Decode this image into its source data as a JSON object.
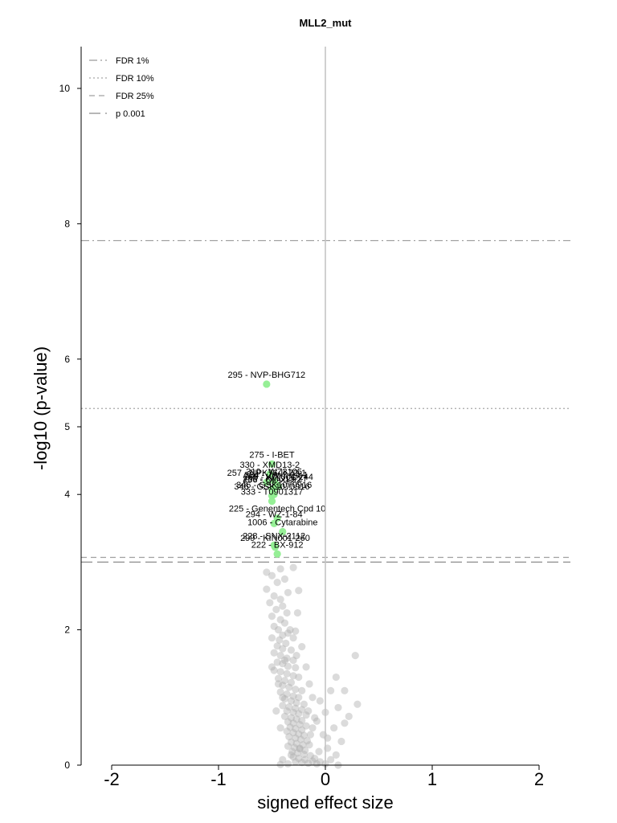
{
  "chart_data": {
    "type": "scatter",
    "title": "MLL2_mut",
    "xlabel": "signed effect size",
    "ylabel": "-log10 (p-value)",
    "xlim": [
      -2.3,
      2.3
    ],
    "ylim": [
      0,
      10.6
    ],
    "x_ticks": [
      "-2",
      "-1",
      "0",
      "1",
      "2"
    ],
    "y_ticks": [
      "0",
      "2",
      "4",
      "5",
      "6",
      "8",
      "10"
    ],
    "grid": false,
    "legend_placement": "top-left",
    "thresholds": [
      {
        "name": "FDR 1%",
        "y": 7.75,
        "style": "dashdot"
      },
      {
        "name": "FDR 10%",
        "y": 5.27,
        "style": "dotted"
      },
      {
        "name": "FDR 25%",
        "y": 3.07,
        "style": "dashed"
      },
      {
        "name": "p 0.001",
        "y": 3.0,
        "style": "longdash"
      }
    ],
    "highlight_color": "#90ee90",
    "background_color": "#b0b0b0",
    "significant": [
      {
        "label": "295 - NVP-BHG712",
        "x": -0.55,
        "y": 5.63
      },
      {
        "label": "275 - I-BET",
        "x": -0.5,
        "y": 4.45
      },
      {
        "label": "330 - XMD13-2",
        "x": -0.52,
        "y": 4.3
      },
      {
        "label": "257 - NPK76-II-72-1",
        "x": -0.55,
        "y": 4.18
      },
      {
        "label": "310 - WZ3105",
        "x": -0.48,
        "y": 4.2
      },
      {
        "label": "334 - JW-7-24-1",
        "x": -0.46,
        "y": 4.15
      },
      {
        "label": "265 - KIN001-244",
        "x": -0.44,
        "y": 4.12
      },
      {
        "label": "256 - QL-XI-92",
        "x": -0.5,
        "y": 4.08
      },
      {
        "label": "258 - XMD15-27",
        "x": -0.47,
        "y": 4.1
      },
      {
        "label": "346 - GSK1070916",
        "x": -0.48,
        "y": 4.0
      },
      {
        "label": "346 - GSK1070916",
        "x": -0.5,
        "y": 3.98
      },
      {
        "label": "333 - T0901317",
        "x": -0.5,
        "y": 3.9
      },
      {
        "label": "225 - Genentech Cpd 10",
        "x": -0.45,
        "y": 3.65
      },
      {
        "label": "294 - WZ-1-84",
        "x": -0.48,
        "y": 3.57
      },
      {
        "label": "1006 - Cytarabine",
        "x": -0.4,
        "y": 3.45
      },
      {
        "label": "228 - SNX-2112",
        "x": -0.48,
        "y": 3.25
      },
      {
        "label": "299 - KIN001-260",
        "x": -0.47,
        "y": 3.22
      },
      {
        "label": "222 - BX-912",
        "x": -0.45,
        "y": 3.12
      }
    ],
    "background_points": [
      [
        -0.55,
        2.85
      ],
      [
        -0.42,
        2.9
      ],
      [
        -0.3,
        2.92
      ],
      [
        -0.5,
        2.8
      ],
      [
        -0.38,
        2.75
      ],
      [
        -0.45,
        2.7
      ],
      [
        -0.55,
        2.6
      ],
      [
        -0.35,
        2.55
      ],
      [
        -0.48,
        2.5
      ],
      [
        -0.42,
        2.45
      ],
      [
        -0.25,
        2.58
      ],
      [
        -0.52,
        2.4
      ],
      [
        -0.4,
        2.35
      ],
      [
        -0.46,
        2.3
      ],
      [
        -0.36,
        2.25
      ],
      [
        -0.5,
        2.2
      ],
      [
        -0.42,
        2.15
      ],
      [
        -0.38,
        2.1
      ],
      [
        -0.48,
        2.05
      ],
      [
        -0.44,
        2.0
      ],
      [
        -0.35,
        1.95
      ],
      [
        -0.4,
        1.92
      ],
      [
        -0.28,
        1.98
      ],
      [
        -0.5,
        1.88
      ],
      [
        -0.43,
        1.85
      ],
      [
        -0.37,
        1.8
      ],
      [
        -0.45,
        1.76
      ],
      [
        -0.4,
        1.72
      ],
      [
        -0.32,
        1.7
      ],
      [
        -0.48,
        1.66
      ],
      [
        -0.42,
        1.62
      ],
      [
        -0.36,
        1.58
      ],
      [
        -0.3,
        1.55
      ],
      [
        -0.45,
        1.52
      ],
      [
        -0.4,
        1.5
      ],
      [
        -0.35,
        1.46
      ],
      [
        -0.28,
        1.44
      ],
      [
        -0.48,
        1.4
      ],
      [
        -0.42,
        1.38
      ],
      [
        -0.36,
        1.35
      ],
      [
        -0.3,
        1.32
      ],
      [
        -0.25,
        1.3
      ],
      [
        -0.44,
        1.28
      ],
      [
        -0.38,
        1.25
      ],
      [
        -0.32,
        1.22
      ],
      [
        -0.4,
        1.18
      ],
      [
        -0.34,
        1.15
      ],
      [
        -0.28,
        1.12
      ],
      [
        -0.22,
        1.1
      ],
      [
        -0.42,
        1.08
      ],
      [
        -0.36,
        1.05
      ],
      [
        -0.3,
        1.02
      ],
      [
        -0.25,
        1.0
      ],
      [
        -0.38,
        0.98
      ],
      [
        -0.32,
        0.95
      ],
      [
        -0.27,
        0.92
      ],
      [
        -0.2,
        0.9
      ],
      [
        -0.4,
        0.88
      ],
      [
        -0.34,
        0.86
      ],
      [
        -0.28,
        0.84
      ],
      [
        -0.22,
        0.82
      ],
      [
        -0.36,
        0.8
      ],
      [
        -0.3,
        0.78
      ],
      [
        -0.25,
        0.76
      ],
      [
        -0.18,
        0.74
      ],
      [
        -0.38,
        0.72
      ],
      [
        -0.32,
        0.7
      ],
      [
        -0.27,
        0.68
      ],
      [
        -0.22,
        0.66
      ],
      [
        -0.35,
        0.64
      ],
      [
        -0.3,
        0.62
      ],
      [
        -0.24,
        0.6
      ],
      [
        -0.18,
        0.58
      ],
      [
        -0.33,
        0.56
      ],
      [
        -0.28,
        0.54
      ],
      [
        -0.22,
        0.52
      ],
      [
        -0.36,
        0.5
      ],
      [
        -0.3,
        0.48
      ],
      [
        -0.25,
        0.46
      ],
      [
        -0.2,
        0.44
      ],
      [
        -0.34,
        0.42
      ],
      [
        -0.28,
        0.4
      ],
      [
        -0.23,
        0.38
      ],
      [
        -0.17,
        0.36
      ],
      [
        -0.32,
        0.34
      ],
      [
        -0.27,
        0.32
      ],
      [
        -0.21,
        0.3
      ],
      [
        -0.35,
        0.28
      ],
      [
        -0.29,
        0.26
      ],
      [
        -0.24,
        0.24
      ],
      [
        -0.19,
        0.22
      ],
      [
        -0.31,
        0.2
      ],
      [
        -0.26,
        0.18
      ],
      [
        -0.2,
        0.16
      ],
      [
        -0.14,
        0.14
      ],
      [
        -0.3,
        0.12
      ],
      [
        -0.25,
        0.1
      ],
      [
        -0.19,
        0.08
      ],
      [
        -0.12,
        0.06
      ],
      [
        -0.28,
        0.05
      ],
      [
        -0.22,
        0.04
      ],
      [
        -0.16,
        0.03
      ],
      [
        -0.08,
        0.02
      ],
      [
        -0.35,
        0.02
      ],
      [
        -0.42,
        0.01
      ],
      [
        -0.1,
        0.1
      ],
      [
        -0.05,
        0.05
      ],
      [
        0.0,
        0.02
      ],
      [
        0.05,
        0.08
      ],
      [
        0.1,
        0.15
      ],
      [
        0.02,
        0.25
      ],
      [
        0.15,
        0.35
      ],
      [
        -0.02,
        0.45
      ],
      [
        0.08,
        0.55
      ],
      [
        0.18,
        0.62
      ],
      [
        0.22,
        0.72
      ],
      [
        0.12,
        0.85
      ],
      [
        0.3,
        0.9
      ],
      [
        0.05,
        1.1
      ],
      [
        0.18,
        1.1
      ],
      [
        0.1,
        1.3
      ],
      [
        0.28,
        1.62
      ],
      [
        -0.05,
        0.95
      ],
      [
        0.0,
        0.78
      ],
      [
        -0.08,
        0.65
      ],
      [
        -0.12,
        0.55
      ],
      [
        0.02,
        0.4
      ],
      [
        -0.15,
        0.3
      ],
      [
        -0.06,
        0.2
      ],
      [
        0.12,
        0.0
      ],
      [
        -0.42,
        0.55
      ],
      [
        -0.46,
        0.8
      ],
      [
        -0.4,
        1.0
      ],
      [
        -0.44,
        1.2
      ],
      [
        -0.5,
        1.45
      ],
      [
        -0.38,
        1.55
      ],
      [
        -0.3,
        1.88
      ],
      [
        -0.22,
        1.75
      ],
      [
        -0.18,
        1.45
      ],
      [
        -0.15,
        1.2
      ],
      [
        -0.12,
        1.0
      ],
      [
        -0.16,
        0.8
      ],
      [
        -0.1,
        0.7
      ],
      [
        -0.14,
        0.45
      ],
      [
        -0.24,
        0.25
      ],
      [
        -0.32,
        0.15
      ],
      [
        -0.4,
        0.08
      ],
      [
        -0.27,
        1.62
      ],
      [
        -0.33,
        2.0
      ],
      [
        -0.26,
        2.25
      ]
    ]
  }
}
